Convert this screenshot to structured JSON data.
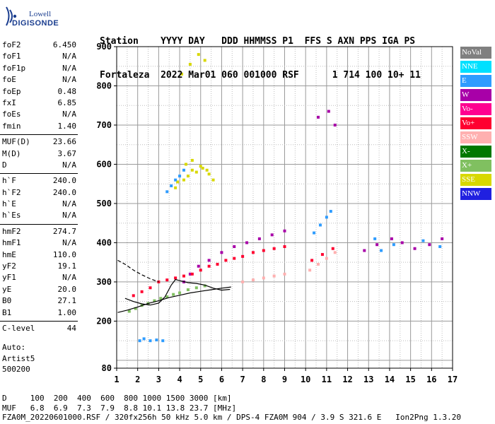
{
  "logo": {
    "line1": "Lowell",
    "line2": "DIGISONDE"
  },
  "header": {
    "line1": "Station    YYYY DAY   DDD HHMMSS P1  FFS S AXN PPS IGA PS",
    "line2": "Fortaleza  2022 Mar01 060 001000 RSF      1 714 100 10+ 11"
  },
  "params": [
    [
      {
        "name": "foF2",
        "value": "6.450"
      },
      {
        "name": "foF1",
        "value": "N/A"
      },
      {
        "name": "foF1p",
        "value": "N/A"
      },
      {
        "name": "foE",
        "value": "N/A"
      },
      {
        "name": "foEp",
        "value": "0.48"
      },
      {
        "name": "fxI",
        "value": "6.85"
      },
      {
        "name": "foEs",
        "value": "N/A"
      },
      {
        "name": "fmin",
        "value": "1.40"
      }
    ],
    [
      {
        "name": "MUF(D)",
        "value": "23.66"
      },
      {
        "name": "M(D)",
        "value": "3.67"
      },
      {
        "name": "D",
        "value": "N/A"
      }
    ],
    [
      {
        "name": "h`F",
        "value": "240.0"
      },
      {
        "name": "h`F2",
        "value": "240.0"
      },
      {
        "name": "h`E",
        "value": "N/A"
      },
      {
        "name": "h`Es",
        "value": "N/A"
      }
    ],
    [
      {
        "name": "hmF2",
        "value": "274.7"
      },
      {
        "name": "hmF1",
        "value": "N/A"
      },
      {
        "name": "hmE",
        "value": "110.0"
      },
      {
        "name": "yF2",
        "value": "19.1"
      },
      {
        "name": "yF1",
        "value": "N/A"
      },
      {
        "name": "yE",
        "value": "20.0"
      },
      {
        "name": "B0",
        "value": "27.1"
      },
      {
        "name": "B1",
        "value": "1.00"
      }
    ],
    [
      {
        "name": "C-level",
        "value": "44"
      }
    ]
  ],
  "auto": {
    "line1": "Auto:",
    "line2": "Artist5",
    "line3": "500200"
  },
  "legend": [
    {
      "label": "NoVal",
      "color": "#808080"
    },
    {
      "label": "NNE",
      "color": "#00e0ff"
    },
    {
      "label": "E",
      "color": "#2e9cff"
    },
    {
      "label": "W",
      "color": "#a800a8"
    },
    {
      "label": "Vo-",
      "color": "#ff0090"
    },
    {
      "label": "Vo+",
      "color": "#ff0030"
    },
    {
      "label": "SSW",
      "color": "#ffb0b0"
    },
    {
      "label": "X-",
      "color": "#007800"
    },
    {
      "label": "X+",
      "color": "#80c060"
    },
    {
      "label": "SSE",
      "color": "#d8d800"
    },
    {
      "label": "NNW",
      "color": "#2020e0"
    }
  ],
  "bottom": {
    "line1": "D     100  200  400  600  800 1000 1500 3000 [km]",
    "line2": "MUF   6.8  6.9  7.3  7.9  8.8 10.1 13.8 23.7 [MHz]",
    "line3": "FZA0M_20220601000.RSF / 320fx256h 50 kHz 5.0 km / DPS-4 FZA0M 904 / 3.9 S 321.6 E   Ion2Png 1.3.20"
  },
  "chart_data": {
    "type": "scatter",
    "title": "",
    "xlabel": "",
    "ylabel": "",
    "xlim": [
      1,
      17
    ],
    "ylim": [
      80,
      900
    ],
    "xticks": [
      1,
      2,
      3,
      4,
      5,
      6,
      7,
      8,
      9,
      10,
      11,
      12,
      13,
      14,
      15,
      16,
      17
    ],
    "yticks": [
      80,
      200,
      300,
      400,
      500,
      600,
      700,
      800,
      900
    ],
    "grid": true,
    "legend_position": "right",
    "series": [
      {
        "color": "#d8d800",
        "x": [
          3.9,
          4.2,
          4.4,
          4.6,
          4.8,
          5.1,
          5.4,
          4.3,
          4.6,
          5.0,
          5.3,
          5.6,
          4.1,
          4.5,
          4.9,
          5.2,
          3.8
        ],
        "y": [
          555,
          560,
          570,
          585,
          580,
          590,
          575,
          600,
          610,
          595,
          585,
          560,
          830,
          855,
          880,
          865,
          540
        ]
      },
      {
        "color": "#2e9cff",
        "x": [
          3.4,
          3.6,
          3.8,
          4.0,
          4.2,
          2.1,
          2.3,
          2.6,
          2.9,
          3.2,
          10.4,
          10.7,
          11.0,
          11.2,
          13.3,
          13.6,
          14.2,
          15.6,
          16.4
        ],
        "y": [
          530,
          545,
          560,
          570,
          585,
          150,
          155,
          150,
          152,
          150,
          425,
          445,
          465,
          480,
          410,
          380,
          395,
          405,
          390
        ]
      },
      {
        "color": "#a800a8",
        "x": [
          4.2,
          4.5,
          4.9,
          5.4,
          6.0,
          6.6,
          7.2,
          7.8,
          8.4,
          9.0,
          10.6,
          11.1,
          11.4,
          12.8,
          13.4,
          14.1,
          14.6,
          15.2,
          15.9,
          16.5
        ],
        "y": [
          300,
          320,
          340,
          355,
          375,
          390,
          400,
          410,
          420,
          430,
          720,
          735,
          700,
          380,
          395,
          410,
          400,
          385,
          395,
          410
        ]
      },
      {
        "color": "#ff0030",
        "x": [
          1.8,
          2.2,
          2.6,
          3.0,
          3.4,
          3.8,
          4.2,
          4.6,
          5.0,
          5.4,
          5.8,
          6.2,
          6.6,
          7.0,
          7.5,
          8.0,
          8.5,
          9.0,
          10.3,
          10.8,
          11.3
        ],
        "y": [
          265,
          275,
          285,
          300,
          305,
          310,
          315,
          320,
          330,
          340,
          345,
          355,
          360,
          365,
          375,
          380,
          385,
          390,
          355,
          370,
          385
        ]
      },
      {
        "color": "#ffb0b0",
        "x": [
          7.0,
          7.5,
          8.0,
          8.5,
          9.0,
          10.2,
          10.6,
          11.0,
          11.4
        ],
        "y": [
          300,
          305,
          310,
          315,
          320,
          330,
          345,
          360,
          375
        ]
      },
      {
        "color": "#80c060",
        "x": [
          1.6,
          1.9,
          2.2,
          2.5,
          2.8,
          3.1,
          3.4,
          3.7,
          4.0,
          4.4,
          4.8,
          5.2
        ],
        "y": [
          225,
          232,
          240,
          245,
          252,
          258,
          262,
          268,
          272,
          280,
          285,
          290
        ]
      }
    ],
    "traces": [
      {
        "style": "solid",
        "x": [
          1.05,
          1.5,
          2.0,
          2.5,
          3.0,
          3.5,
          4.0,
          4.5,
          5.0,
          5.5,
          6.0,
          6.45
        ],
        "y": [
          222,
          228,
          236,
          245,
          252,
          260,
          266,
          272,
          276,
          280,
          284,
          287
        ]
      },
      {
        "style": "solid",
        "x": [
          1.4,
          1.8,
          2.2,
          2.6,
          3.0,
          3.3,
          3.6,
          3.8,
          4.1,
          4.4,
          4.8,
          5.2,
          5.6,
          6.0,
          6.4
        ],
        "y": [
          258,
          250,
          244,
          241,
          246,
          262,
          292,
          306,
          302,
          298,
          296,
          292,
          284,
          279,
          281
        ]
      },
      {
        "style": "dashed",
        "x": [
          1.05,
          1.4,
          1.8,
          2.2,
          2.6,
          3.0
        ],
        "y": [
          355,
          345,
          330,
          318,
          308,
          300
        ]
      }
    ]
  }
}
